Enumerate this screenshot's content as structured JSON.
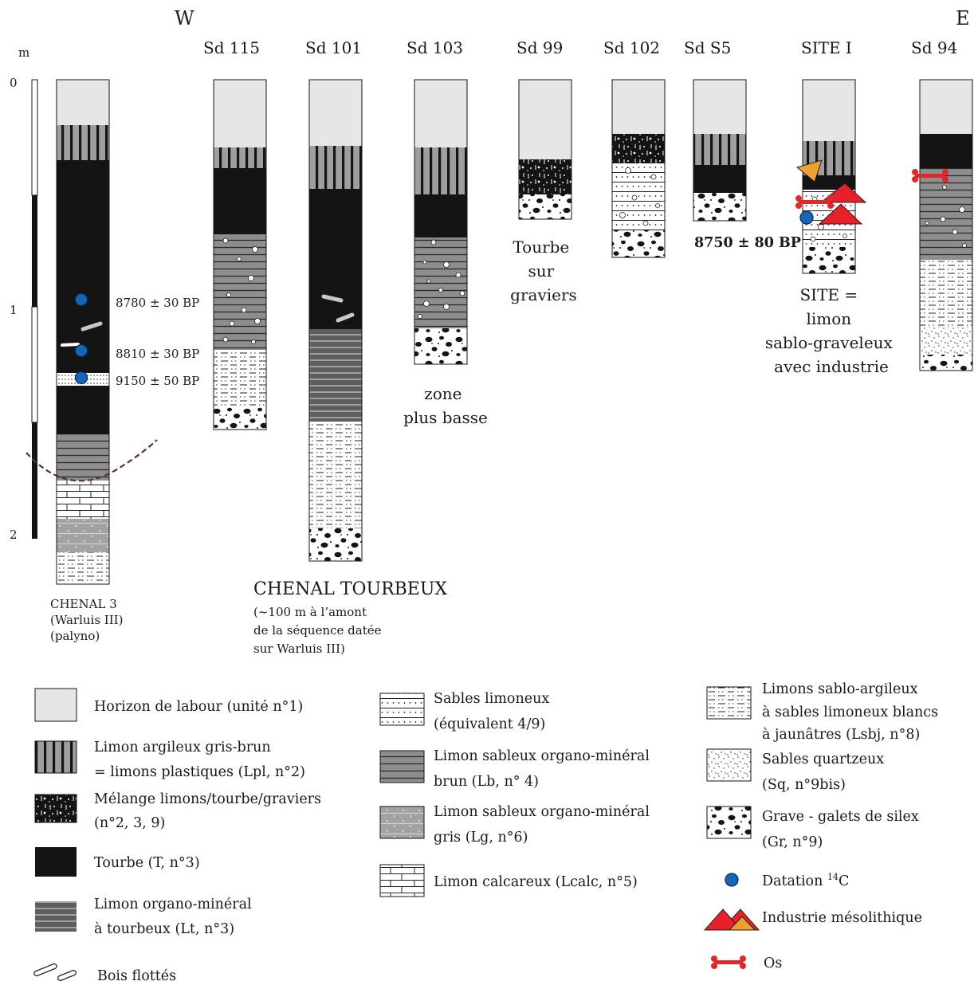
{
  "orientation": {
    "west": "W",
    "east": "E"
  },
  "scale": {
    "unit": "m",
    "ticks": [
      "0",
      "1",
      "2"
    ]
  },
  "columns": [
    {
      "id": "chenal3",
      "caption": [
        "CHENAL 3",
        "(Warluis III)",
        "(palyno)"
      ]
    },
    {
      "id": "sd115",
      "label": "Sd 115"
    },
    {
      "id": "sd101",
      "label": "Sd 101"
    },
    {
      "id": "sd103",
      "label": "Sd 103"
    },
    {
      "id": "sd99",
      "label": "Sd 99"
    },
    {
      "id": "sd102",
      "label": "Sd 102"
    },
    {
      "id": "sds5",
      "label": "Sd S5"
    },
    {
      "id": "site1",
      "label": "SITE I"
    },
    {
      "id": "sd94",
      "label": "Sd 94"
    }
  ],
  "dates": {
    "d1": "8780 ± 30 BP",
    "d2": "8810 ± 30 BP",
    "d3": "9150 ± 50 BP",
    "d4": "8750 ± 80 BP"
  },
  "notes": {
    "sd103": [
      "zone",
      "plus basse"
    ],
    "sd99": [
      "Tourbe",
      "sur",
      "graviers"
    ],
    "site1": [
      "SITE =",
      "limon",
      "sablo-graveleux",
      "avec industrie"
    ],
    "chenal_title": "CHENAL TOURBEUX",
    "chenal_sub": [
      "(~100 m à l’amont",
      "de la séquence datée",
      "sur Warluis III)"
    ]
  },
  "legend": {
    "labour": [
      "Horizon de labour (unité n°1)"
    ],
    "lpl": [
      "Limon argileux gris-brun",
      "= limons plastiques (Lpl, n°2)"
    ],
    "melange": [
      "Mélange limons/tourbe/graviers",
      "(n°2, 3, 9)"
    ],
    "tourbe": [
      "Tourbe (T, n°3)"
    ],
    "lt": [
      "Limon organo-minéral",
      "à tourbeux (Lt, n°3)"
    ],
    "bois": [
      "Bois flottés"
    ],
    "sables_lim": [
      "Sables limoneux",
      "(équivalent 4/9)"
    ],
    "lb": [
      "Limon sableux organo-minéral",
      "brun (Lb, n° 4)"
    ],
    "lg": [
      "Limon sableux organo-minéral",
      "gris (Lg, n°6)"
    ],
    "lcalc": [
      "Limon calcareux (Lcalc, n°5)"
    ],
    "lsbj": [
      "Limons sablo-argileux",
      "à sables limoneux blancs",
      "à jaunâtres (Lsbj, n°8)"
    ],
    "sq": [
      "Sables quartzeux",
      "(Sq, n°9bis)"
    ],
    "gr": [
      "Grave - galets de silex",
      "(Gr, n°9)"
    ],
    "datation": {
      "main": "Datation ",
      "sup": "14",
      "end": "C"
    },
    "industrie": [
      "Industrie mésolithique"
    ],
    "os": [
      "Os"
    ]
  },
  "colors": {
    "labour": "#e6e6e8",
    "tourbe": "#141414",
    "lpl_bg": "#9e9e9e",
    "lb_bg": "#8e8e8e",
    "lg_bg": "#a2a2a2",
    "lt_bg": "#6a6a6a",
    "dating_dot": "#1565b8",
    "industrie_red": "#e8202a",
    "industrie_orange": "#f0a030",
    "os": "#e02828",
    "channel_line": "#5a2a55"
  }
}
